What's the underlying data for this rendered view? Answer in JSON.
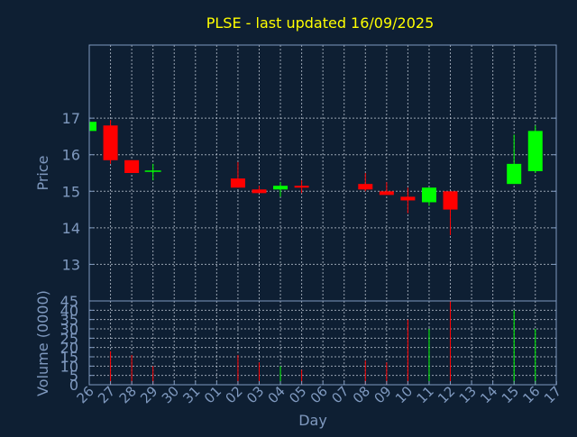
{
  "title": "PLSE - last updated 16/09/2025",
  "colors": {
    "background": "#0e1f33",
    "axis": "#7f99bf",
    "title": "#ffff00",
    "up": "#00ff00",
    "down": "#ff0000"
  },
  "chart_data": [
    {
      "type": "candlestick",
      "ylabel": "Price",
      "ylim": [
        12.0,
        19.0
      ],
      "yticks": [
        13,
        14,
        15,
        16,
        17
      ],
      "grid": true,
      "candles": [
        {
          "day": "26",
          "open": 16.65,
          "high": 16.9,
          "low": 16.6,
          "close": 16.9
        },
        {
          "day": "27",
          "open": 16.8,
          "high": 16.95,
          "low": 15.75,
          "close": 15.85
        },
        {
          "day": "28",
          "open": 15.85,
          "high": 15.85,
          "low": 15.5,
          "close": 15.5
        },
        {
          "day": "29",
          "open": 15.55,
          "high": 15.75,
          "low": 15.3,
          "close": 15.55
        },
        {
          "day": "02",
          "open": 15.35,
          "high": 15.8,
          "low": 15.1,
          "close": 15.1
        },
        {
          "day": "03",
          "open": 15.05,
          "high": 15.15,
          "low": 14.95,
          "close": 14.95
        },
        {
          "day": "04",
          "open": 15.05,
          "high": 15.25,
          "low": 14.85,
          "close": 15.15
        },
        {
          "day": "05",
          "open": 15.15,
          "high": 15.3,
          "low": 14.95,
          "close": 15.1
        },
        {
          "day": "08",
          "open": 15.2,
          "high": 15.5,
          "low": 15.0,
          "close": 15.05
        },
        {
          "day": "09",
          "open": 15.0,
          "high": 15.25,
          "low": 14.9,
          "close": 14.9
        },
        {
          "day": "10",
          "open": 14.85,
          "high": 15.1,
          "low": 14.4,
          "close": 14.75
        },
        {
          "day": "11",
          "open": 14.7,
          "high": 15.1,
          "low": 14.6,
          "close": 15.1
        },
        {
          "day": "12",
          "open": 15.0,
          "high": 15.0,
          "low": 13.8,
          "close": 14.5
        },
        {
          "day": "15",
          "open": 15.2,
          "high": 16.55,
          "low": 15.2,
          "close": 15.75
        },
        {
          "day": "16",
          "open": 15.55,
          "high": 16.8,
          "low": 15.5,
          "close": 16.65
        }
      ]
    },
    {
      "type": "bar",
      "ylabel": "Volume (0000)",
      "xlabel": "Day",
      "ylim": [
        0,
        45
      ],
      "yticks": [
        0,
        5,
        10,
        15,
        20,
        25,
        30,
        35,
        40,
        45
      ],
      "grid": true,
      "categories": [
        "26",
        "27",
        "28",
        "29",
        "30",
        "31",
        "01",
        "02",
        "03",
        "04",
        "05",
        "06",
        "07",
        "08",
        "09",
        "10",
        "11",
        "12",
        "13",
        "14",
        "15",
        "16",
        "17"
      ],
      "volumes": [
        {
          "day": "27",
          "value": 18,
          "direction": "down"
        },
        {
          "day": "28",
          "value": 16,
          "direction": "down"
        },
        {
          "day": "29",
          "value": 10,
          "direction": "down"
        },
        {
          "day": "02",
          "value": 16,
          "direction": "down"
        },
        {
          "day": "03",
          "value": 12,
          "direction": "down"
        },
        {
          "day": "04",
          "value": 10,
          "direction": "up"
        },
        {
          "day": "05",
          "value": 8,
          "direction": "down"
        },
        {
          "day": "08",
          "value": 13,
          "direction": "down"
        },
        {
          "day": "09",
          "value": 12,
          "direction": "down"
        },
        {
          "day": "10",
          "value": 35,
          "direction": "down"
        },
        {
          "day": "11",
          "value": 30,
          "direction": "up"
        },
        {
          "day": "12",
          "value": 45,
          "direction": "down"
        },
        {
          "day": "15",
          "value": 40,
          "direction": "up"
        },
        {
          "day": "16",
          "value": 30,
          "direction": "up"
        }
      ]
    }
  ]
}
